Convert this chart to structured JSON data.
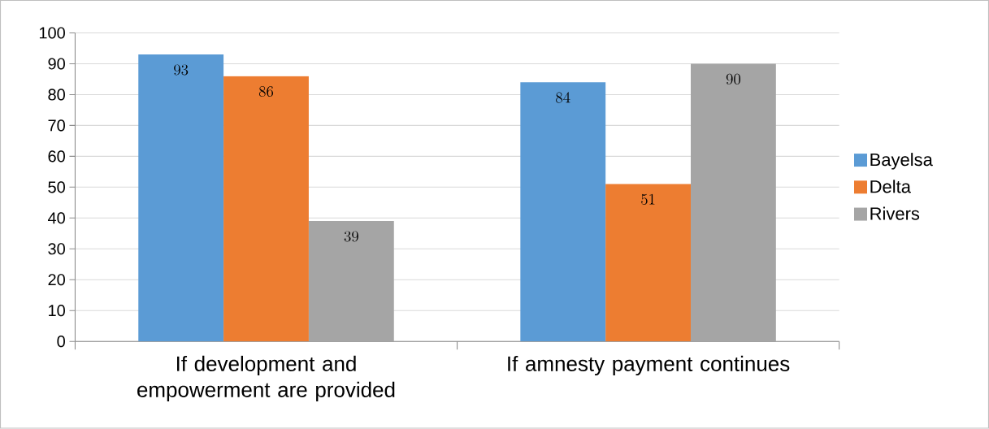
{
  "chart_data": {
    "type": "bar",
    "categories": [
      "If development and empowerment are provided",
      "If amnesty payment continues"
    ],
    "series": [
      {
        "name": "Bayelsa",
        "color": "#5b9bd5",
        "values": [
          93,
          84
        ]
      },
      {
        "name": "Delta",
        "color": "#ed7d31",
        "values": [
          86,
          51
        ]
      },
      {
        "name": "Rivers",
        "color": "#a5a5a5",
        "values": [
          39,
          90
        ]
      }
    ],
    "ylim": [
      0,
      100
    ],
    "yticks": [
      0,
      10,
      20,
      30,
      40,
      50,
      60,
      70,
      80,
      90,
      100
    ],
    "grid": "y",
    "legend": "right",
    "data_labels": true
  }
}
